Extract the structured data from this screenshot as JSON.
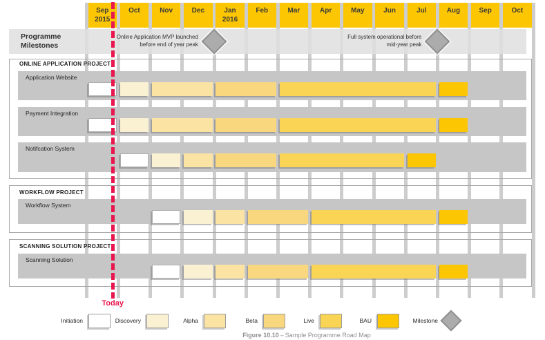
{
  "colors": {
    "accent_red": "#E8184E",
    "header_yellow": "#FCC602",
    "band_gray": "#C6C6C6",
    "milestones_band_gray": "#DFDFDF",
    "gridline_gray": "#CDCDCD",
    "milestone_diamond_gray": "#ACACAC",
    "stages": {
      "initiation": "#FFFFFF",
      "discovery": "#FAF0D2",
      "alpha": "#FBE3A4",
      "beta": "#F8D77F",
      "live": "#F9D455",
      "bau": "#FCC602"
    }
  },
  "chart_data": {
    "type": "gantt",
    "months": [
      {
        "label": "Sep",
        "sublabel": "2015"
      },
      {
        "label": "Oct"
      },
      {
        "label": "Nov"
      },
      {
        "label": "Dec"
      },
      {
        "label": "Jan",
        "sublabel": "2016"
      },
      {
        "label": "Feb"
      },
      {
        "label": "Mar"
      },
      {
        "label": "Apr"
      },
      {
        "label": "May"
      },
      {
        "label": "Jun"
      },
      {
        "label": "Jul"
      },
      {
        "label": "Aug"
      },
      {
        "label": "Sep"
      },
      {
        "label": "Oct"
      }
    ],
    "milestones_row_title": "Programme Milestones",
    "milestones": [
      {
        "lines": [
          "Online Application MVP launched",
          "before end of year peak"
        ],
        "gap_before_month_index": 4
      },
      {
        "lines": [
          "Full system operational before",
          "mid-year peak"
        ],
        "gap_before_month_index": 11
      }
    ],
    "sections": [
      {
        "title": "ONLINE APPLICATION PROJECT",
        "rows": [
          {
            "label": "Application Website",
            "spans": [
              {
                "stage": "initiation",
                "from": 0,
                "to": 0
              },
              {
                "stage": "discovery",
                "from": 1,
                "to": 1
              },
              {
                "stage": "alpha",
                "from": 2,
                "to": 3
              },
              {
                "stage": "beta",
                "from": 4,
                "to": 5
              },
              {
                "stage": "live",
                "from": 6,
                "to": 10
              },
              {
                "stage": "bau",
                "from": 11,
                "to": 11
              }
            ]
          },
          {
            "label": "Payment Integration",
            "spans": [
              {
                "stage": "initiation",
                "from": 0,
                "to": 0
              },
              {
                "stage": "discovery",
                "from": 1,
                "to": 1
              },
              {
                "stage": "alpha",
                "from": 2,
                "to": 3
              },
              {
                "stage": "beta",
                "from": 4,
                "to": 5
              },
              {
                "stage": "live",
                "from": 6,
                "to": 10
              },
              {
                "stage": "bau",
                "from": 11,
                "to": 11
              }
            ]
          },
          {
            "label": "Notifcation System",
            "spans": [
              {
                "stage": "initiation",
                "from": 1,
                "to": 1
              },
              {
                "stage": "discovery",
                "from": 2,
                "to": 2
              },
              {
                "stage": "alpha",
                "from": 3,
                "to": 3
              },
              {
                "stage": "beta",
                "from": 4,
                "to": 5
              },
              {
                "stage": "live",
                "from": 6,
                "to": 9
              },
              {
                "stage": "bau",
                "from": 10,
                "to": 10
              }
            ]
          }
        ]
      },
      {
        "title": "WORKFLOW PROJECT",
        "rows": [
          {
            "label": "Workflow System",
            "spans": [
              {
                "stage": "initiation",
                "from": 2,
                "to": 2
              },
              {
                "stage": "discovery",
                "from": 3,
                "to": 3
              },
              {
                "stage": "alpha",
                "from": 4,
                "to": 4
              },
              {
                "stage": "beta",
                "from": 5,
                "to": 6
              },
              {
                "stage": "live",
                "from": 7,
                "to": 10
              },
              {
                "stage": "bau",
                "from": 11,
                "to": 11
              }
            ]
          }
        ]
      },
      {
        "title": "SCANNING SOLUTION PROJECT",
        "rows": [
          {
            "label": "Scanning Solution",
            "spans": [
              {
                "stage": "initiation",
                "from": 2,
                "to": 2
              },
              {
                "stage": "discovery",
                "from": 3,
                "to": 3
              },
              {
                "stage": "alpha",
                "from": 4,
                "to": 4
              },
              {
                "stage": "beta",
                "from": 5,
                "to": 6
              },
              {
                "stage": "live",
                "from": 7,
                "to": 10
              },
              {
                "stage": "bau",
                "from": 11,
                "to": 11
              }
            ]
          }
        ]
      }
    ],
    "today": {
      "label": "Today",
      "month_index": 0,
      "fraction": 0.86
    }
  },
  "legend": {
    "items": [
      {
        "label": "Initiation",
        "stage": "initiation"
      },
      {
        "label": "Discovery",
        "stage": "discovery"
      },
      {
        "label": "Alpha",
        "stage": "alpha"
      },
      {
        "label": "Beta",
        "stage": "beta"
      },
      {
        "label": "Live",
        "stage": "live"
      },
      {
        "label": "BAU",
        "stage": "bau"
      },
      {
        "label": "Milestone",
        "shape": "diamond"
      }
    ]
  },
  "caption": {
    "figure": "Figure 10.10",
    "separator": "–",
    "title": "Sample Programme Road Map"
  }
}
